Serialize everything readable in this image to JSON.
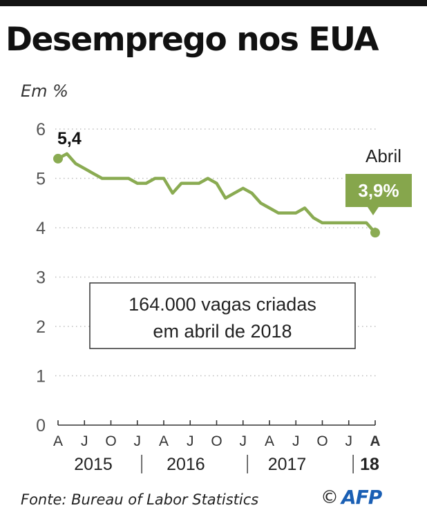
{
  "title": "Desemprego nos EUA",
  "unit_label": "Em %",
  "source": "Fonte: Bureau of Labor Statistics",
  "copyright_symbol": "©",
  "logo_text": "AFP",
  "colors": {
    "line": "#8aab52",
    "label_box": "#86a64c",
    "text": "#222222",
    "grid": "#bdbdbd"
  },
  "chart_data": {
    "type": "line",
    "title": "Desemprego nos EUA",
    "ylabel": "Em %",
    "ylim": [
      0,
      6
    ],
    "yticks": [
      "0",
      "1",
      "2",
      "3",
      "4",
      "5",
      "6"
    ],
    "grid": true,
    "x_tick_labels": [
      "A",
      "J",
      "O",
      "J",
      "A",
      "J",
      "O",
      "J",
      "A",
      "J",
      "O",
      "J",
      "A"
    ],
    "year_labels": [
      "2015",
      "2016",
      "2017",
      "18"
    ],
    "x": [
      "2015-04",
      "2015-05",
      "2015-06",
      "2015-07",
      "2015-08",
      "2015-09",
      "2015-10",
      "2015-11",
      "2015-12",
      "2016-01",
      "2016-02",
      "2016-03",
      "2016-04",
      "2016-05",
      "2016-06",
      "2016-07",
      "2016-08",
      "2016-09",
      "2016-10",
      "2016-11",
      "2016-12",
      "2017-01",
      "2017-02",
      "2017-03",
      "2017-04",
      "2017-05",
      "2017-06",
      "2017-07",
      "2017-08",
      "2017-09",
      "2017-10",
      "2017-11",
      "2017-12",
      "2018-01",
      "2018-02",
      "2018-03",
      "2018-04"
    ],
    "values": [
      5.4,
      5.5,
      5.3,
      5.2,
      5.1,
      5.0,
      5.0,
      5.0,
      5.0,
      4.9,
      4.9,
      5.0,
      5.0,
      4.7,
      4.9,
      4.9,
      4.9,
      5.0,
      4.9,
      4.6,
      4.7,
      4.8,
      4.7,
      4.5,
      4.4,
      4.3,
      4.3,
      4.3,
      4.4,
      4.2,
      4.1,
      4.1,
      4.1,
      4.1,
      4.1,
      4.1,
      3.9
    ],
    "annotations": {
      "start_value": "5,4",
      "end_month": "Abril",
      "end_value": "3,9%",
      "box_line1": "164.000 vagas criadas",
      "box_line2": "em abril de 2018"
    }
  }
}
